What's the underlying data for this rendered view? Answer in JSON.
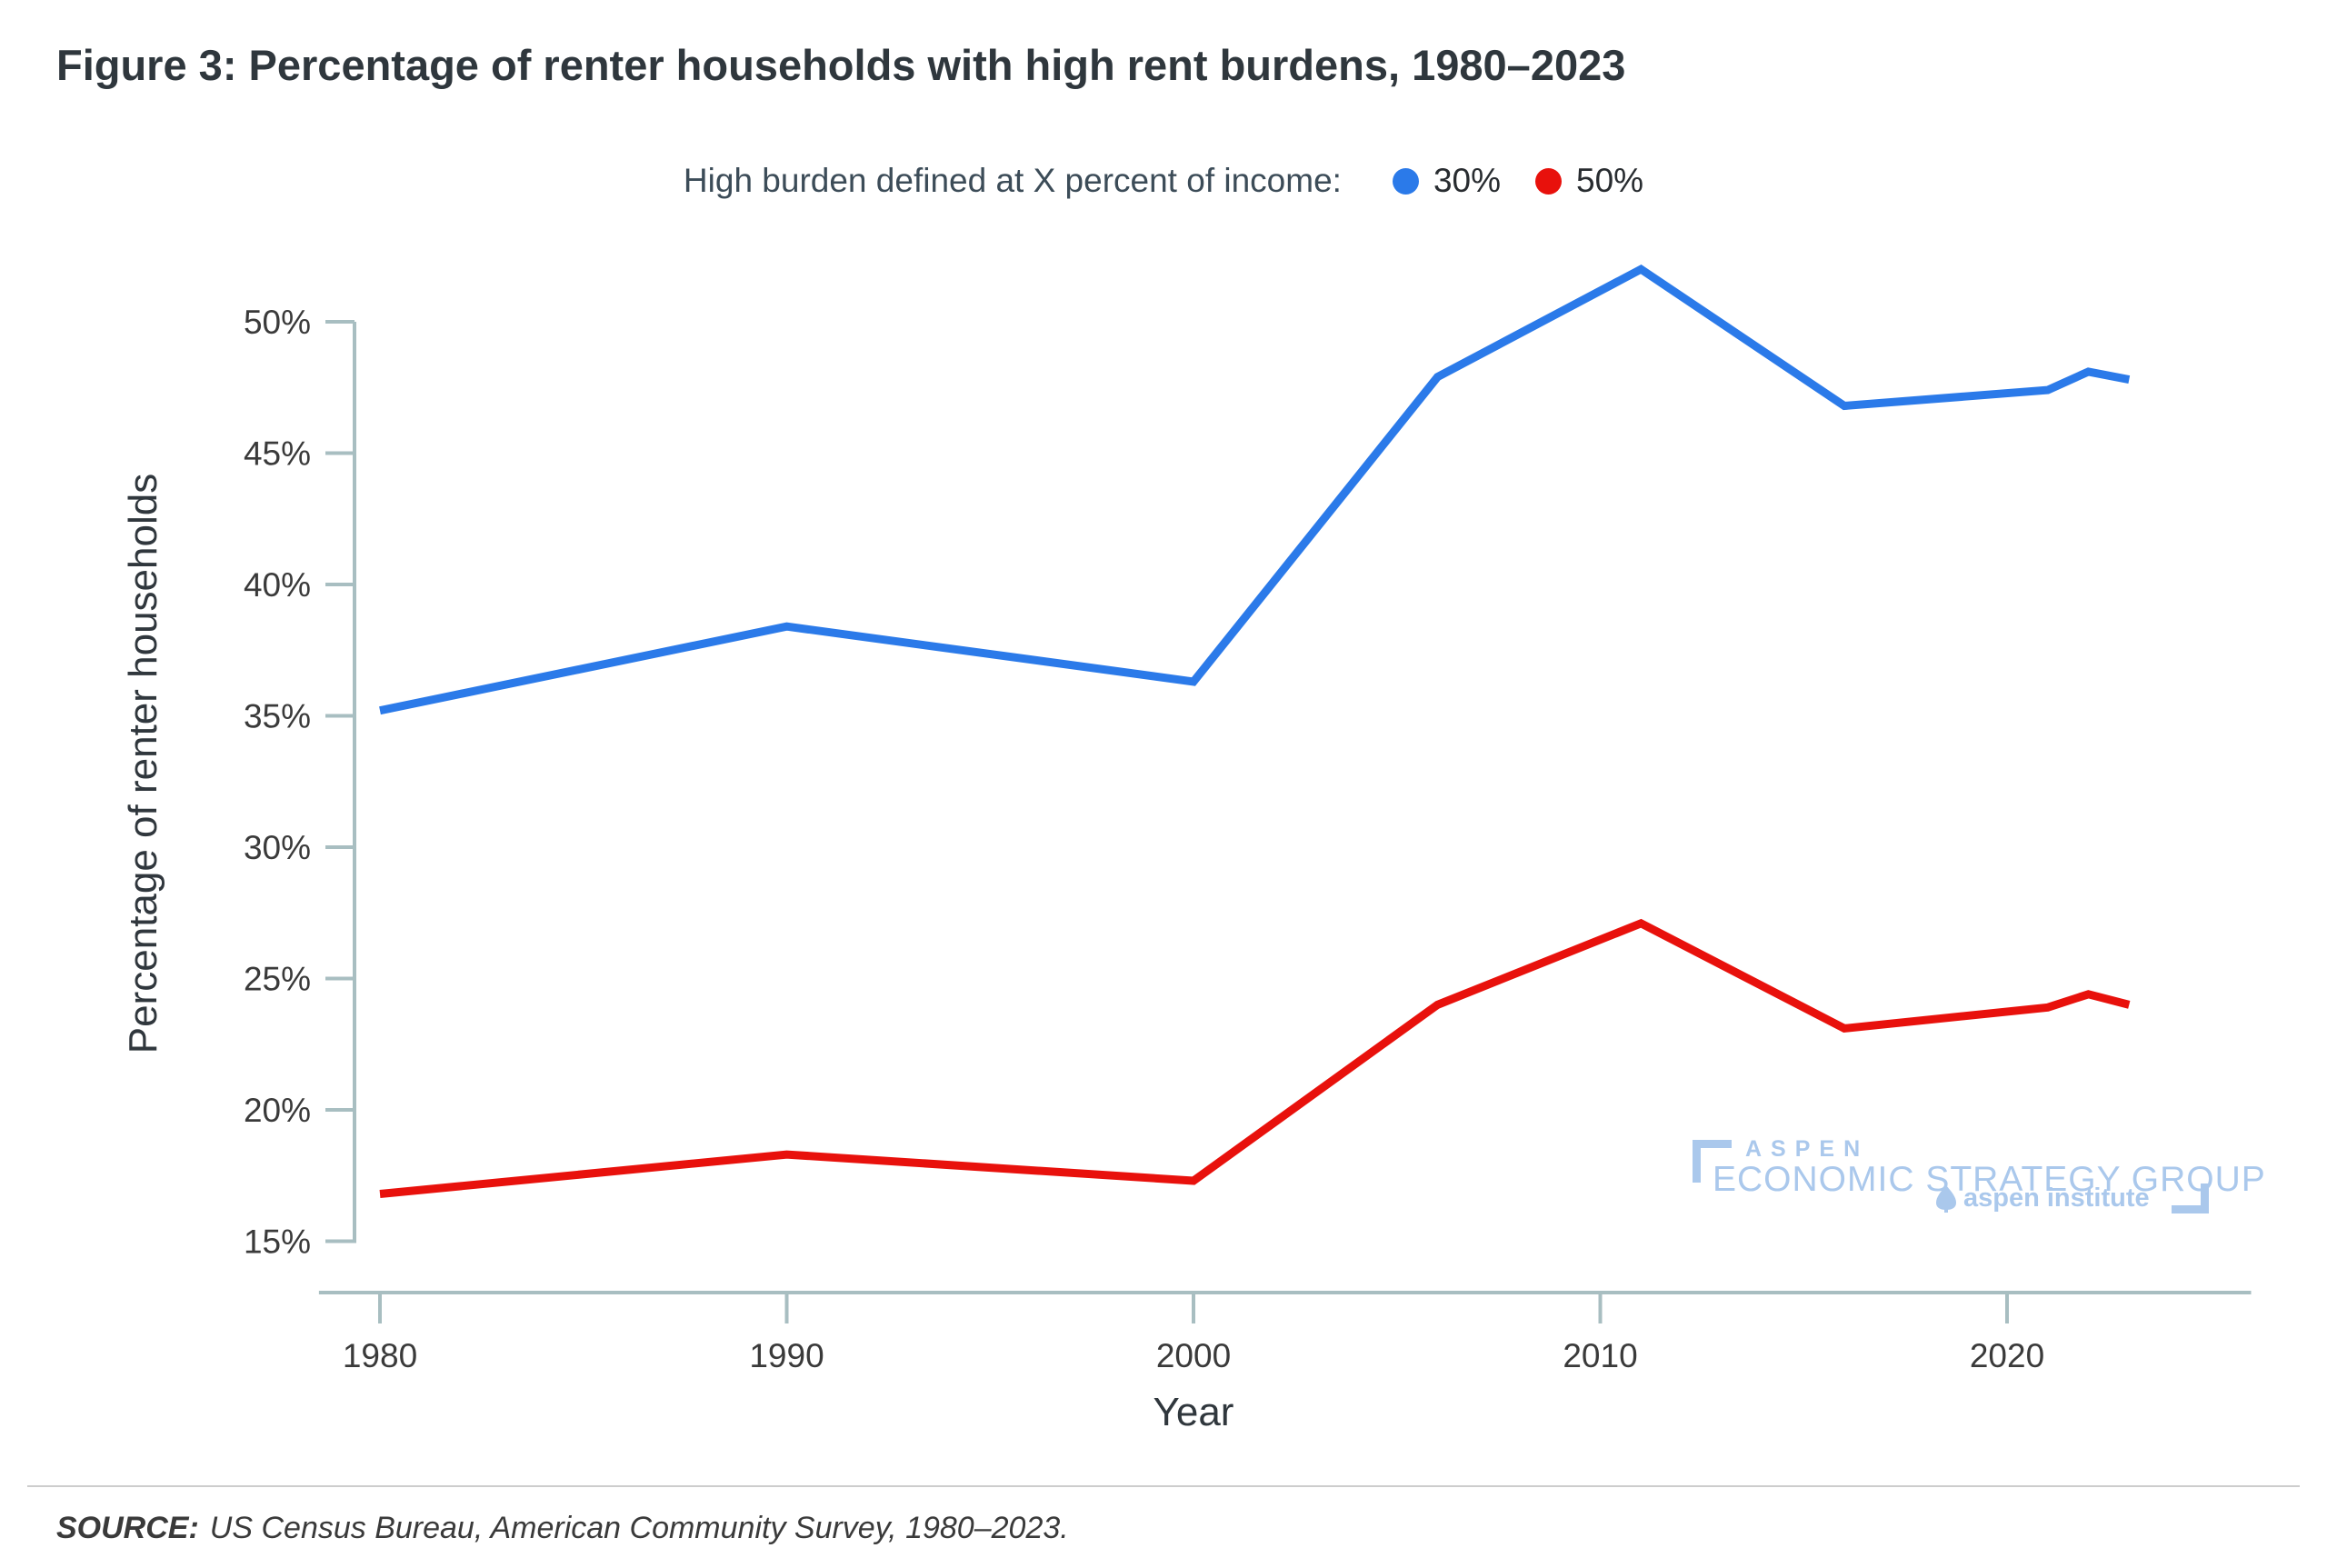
{
  "page": {
    "title": "Figure 3: Percentage of renter households with high rent burdens, 1980–2023"
  },
  "legend": {
    "label": "High burden defined at X percent of income:",
    "items": [
      {
        "label": "30%",
        "color": "#2b7ae9"
      },
      {
        "label": "50%",
        "color": "#e8110c"
      }
    ]
  },
  "chart_data": {
    "type": "line",
    "title": "Figure 3: Percentage of renter households with high rent burdens, 1980–2023",
    "xlabel": "Year",
    "ylabel": "Percentage of renter households",
    "x": [
      1980,
      1990,
      2000,
      2006,
      2011,
      2016,
      2021,
      2022,
      2023
    ],
    "series": [
      {
        "name": "30%",
        "color": "#2b7ae9",
        "values": [
          35.2,
          38.4,
          36.3,
          47.9,
          52.0,
          46.8,
          47.4,
          48.1,
          47.8
        ]
      },
      {
        "name": "50%",
        "color": "#e8110c",
        "values": [
          16.8,
          18.3,
          17.3,
          24.0,
          27.1,
          23.1,
          23.9,
          24.4,
          24.0
        ]
      }
    ],
    "xticks": [
      1980,
      1990,
      2000,
      2010,
      2020
    ],
    "yticks": [
      15,
      20,
      25,
      30,
      35,
      40,
      45,
      50
    ],
    "ytick_suffix": "%",
    "xlim": [
      1978.5,
      2026.0
    ],
    "ylim": [
      13,
      53
    ],
    "grid": false,
    "legend_position": "top",
    "axis_color": "#a8bec1",
    "tick_text_color": "#3a3a3a",
    "axis_title_color": "#30373d"
  },
  "watermark": {
    "line1": "ASPEN",
    "line2": "ECONOMIC STRATEGY GROUP",
    "line3": "aspen institute"
  },
  "source": {
    "label": "SOURCE:",
    "text": "US Census Bureau, American Community Survey, 1980–2023."
  }
}
